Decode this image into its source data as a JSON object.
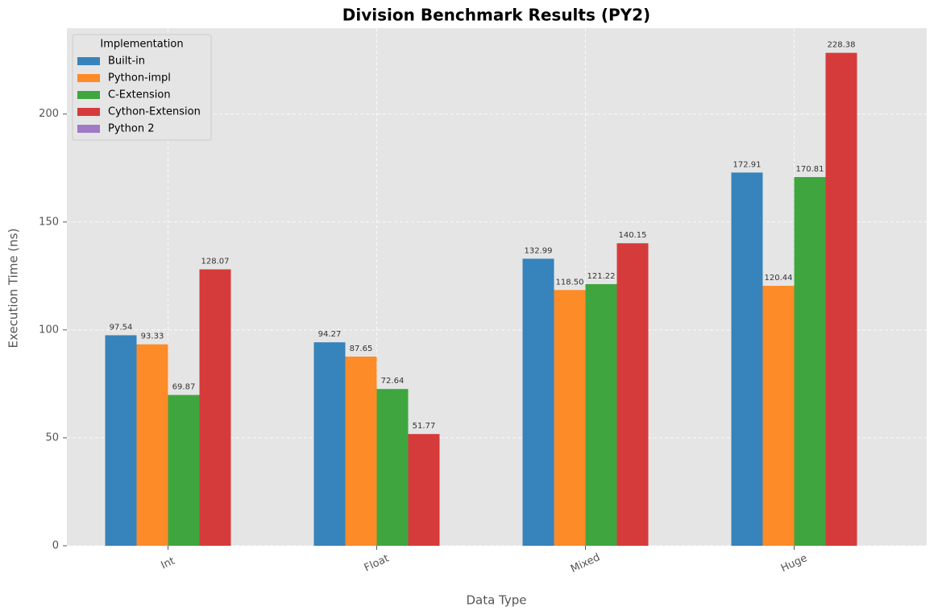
{
  "chart_data": {
    "type": "bar",
    "title": "Division Benchmark Results (PY2)",
    "xlabel": "Data Type",
    "ylabel": "Execution Time (ns)",
    "categories": [
      "Int",
      "Float",
      "Mixed",
      "Huge"
    ],
    "series": [
      {
        "name": "Built-in",
        "color": "#3783bb",
        "values": [
          97.54,
          94.27,
          132.99,
          172.91
        ],
        "value_labels": [
          "97.54",
          "94.27",
          "132.99",
          "172.91"
        ]
      },
      {
        "name": "Python-impl",
        "color": "#fd8b28",
        "values": [
          93.33,
          87.65,
          118.5,
          120.44
        ],
        "value_labels": [
          "93.33",
          "87.65",
          "118.50",
          "120.44"
        ]
      },
      {
        "name": "C-Extension",
        "color": "#3fa63f",
        "values": [
          69.87,
          72.64,
          121.22,
          170.81
        ],
        "value_labels": [
          "69.87",
          "72.64",
          "121.22",
          "170.81"
        ]
      },
      {
        "name": "Cython-Extension",
        "color": "#d63b3b",
        "values": [
          128.07,
          51.77,
          140.15,
          228.38
        ],
        "value_labels": [
          "128.07",
          "51.77",
          "140.15",
          "228.38"
        ]
      },
      {
        "name": "Python 2",
        "color": "#9e7bc4",
        "values": [
          null,
          null,
          null,
          null
        ]
      }
    ],
    "legend_title": "Implementation",
    "legend": "upper left",
    "ylim": [
      0,
      239.8
    ],
    "yticks": [
      0,
      50,
      100,
      150,
      200
    ],
    "grid": true
  }
}
